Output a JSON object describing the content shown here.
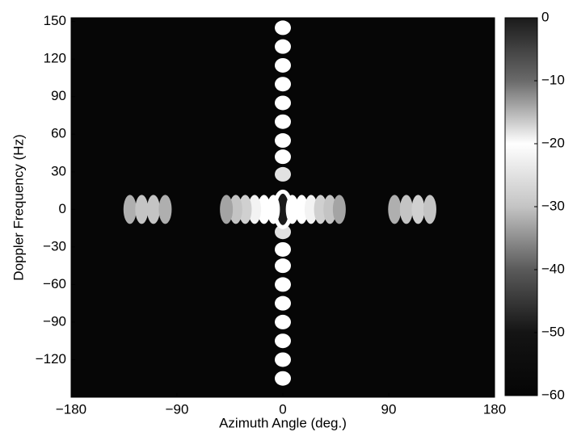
{
  "chart_data": {
    "type": "heatmap",
    "x_label": "Azimuth Angle (deg.)",
    "y_label": "Doppler Frequency (Hz)",
    "xlim": [
      -180,
      180
    ],
    "ylim": [
      -150,
      153
    ],
    "xticks": [
      {
        "value": -180,
        "label": "−180"
      },
      {
        "value": -90,
        "label": "−90"
      },
      0,
      90,
      180
    ],
    "yticks": [
      150,
      120,
      90,
      60,
      30,
      0,
      {
        "value": -30,
        "label": "−30"
      },
      {
        "value": -60,
        "label": "−60"
      },
      {
        "value": -90,
        "label": "−90"
      },
      {
        "value": -120,
        "label": "−120"
      }
    ],
    "clim": [
      -60,
      0
    ],
    "cticks": [
      0,
      {
        "value": -10,
        "label": "−10"
      },
      {
        "value": -20,
        "label": "−20"
      },
      {
        "value": -30,
        "label": "−30"
      },
      {
        "value": -40,
        "label": "−40"
      },
      {
        "value": -50,
        "label": "−50"
      },
      {
        "value": -60,
        "label": "−60"
      }
    ],
    "colormap": [
      {
        "value": 0,
        "color": "#1a1a1a"
      },
      {
        "value": -10,
        "color": "#6a6a6a"
      },
      {
        "value": -20,
        "color": "#ffffff"
      },
      {
        "value": -30,
        "color": "#c4c4c4"
      },
      {
        "value": -40,
        "color": "#5a5a5a"
      },
      {
        "value": -50,
        "color": "#141414"
      },
      {
        "value": -60,
        "color": "#050505"
      }
    ],
    "background_color": "#060606",
    "x": [
      0,
      0,
      0,
      0,
      0,
      0,
      0,
      0,
      0,
      0,
      0,
      0,
      0,
      0,
      0,
      0,
      0,
      0,
      0,
      8,
      -8,
      16,
      -16,
      24,
      -24,
      32,
      -32,
      40,
      -40,
      48,
      -48,
      -130,
      -120,
      -110,
      -100,
      95,
      105,
      115,
      125
    ],
    "y": [
      145,
      130,
      115,
      100,
      85,
      70,
      55,
      42,
      28,
      -18,
      -32,
      -45,
      -60,
      -75,
      -90,
      -105,
      -120,
      -135,
      0,
      0,
      0,
      0,
      0,
      0,
      0,
      0,
      0,
      0,
      0,
      0,
      0,
      0,
      0,
      0,
      0,
      0,
      0,
      0,
      0
    ],
    "values": [
      -20,
      -20,
      -20,
      -20,
      -20,
      -20,
      -20,
      -20,
      -25,
      -25,
      -20,
      -20,
      -20,
      -20,
      -20,
      -20,
      -20,
      -20,
      0,
      -20,
      -20,
      -20,
      -20,
      -22,
      -22,
      -28,
      -28,
      -30,
      -30,
      -33,
      -33,
      -32,
      -30,
      -30,
      -32,
      -32,
      -30,
      -28,
      -30
    ]
  }
}
